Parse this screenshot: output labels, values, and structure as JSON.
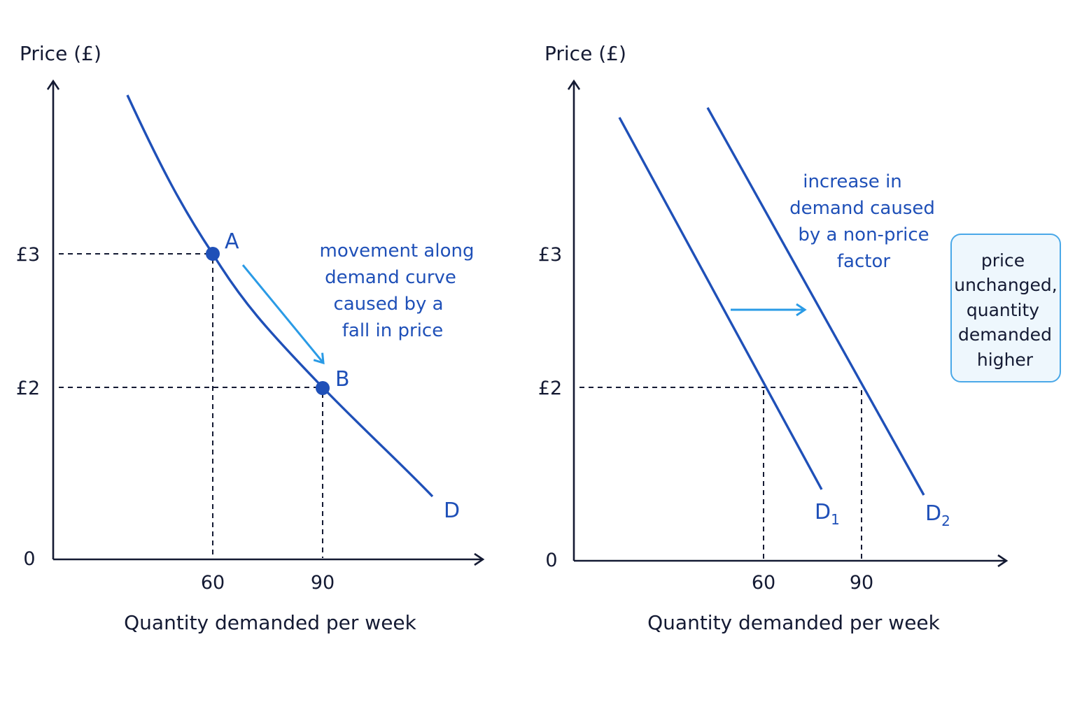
{
  "colors": {
    "axis": "#141a33",
    "curve": "#1f50b8",
    "arrow": "#2a9be6",
    "note_border": "#4aa8e8",
    "note_fill": "#eef7fd"
  },
  "left": {
    "y_axis_title": "Price (£)",
    "x_axis_title": "Quantity demanded per week",
    "origin": "0",
    "y_ticks": [
      "£3",
      "£2"
    ],
    "x_ticks": [
      "60",
      "90"
    ],
    "point_a": "A",
    "point_b": "B",
    "curve_label": "D",
    "annotation": [
      "movement along",
      "demand curve",
      "caused by a",
      "fall in price"
    ]
  },
  "right": {
    "y_axis_title": "Price (£)",
    "x_axis_title": "Quantity demanded per week",
    "origin": "0",
    "y_ticks": [
      "£3",
      "£2"
    ],
    "x_ticks": [
      "60",
      "90"
    ],
    "curve1_label": "D",
    "curve1_sub": "1",
    "curve2_label": "D",
    "curve2_sub": "2",
    "annotation": [
      "increase in",
      "demand caused",
      "by a non-price",
      "factor"
    ],
    "note": [
      "price",
      "unchanged,",
      "quantity",
      "demanded",
      "higher"
    ]
  }
}
